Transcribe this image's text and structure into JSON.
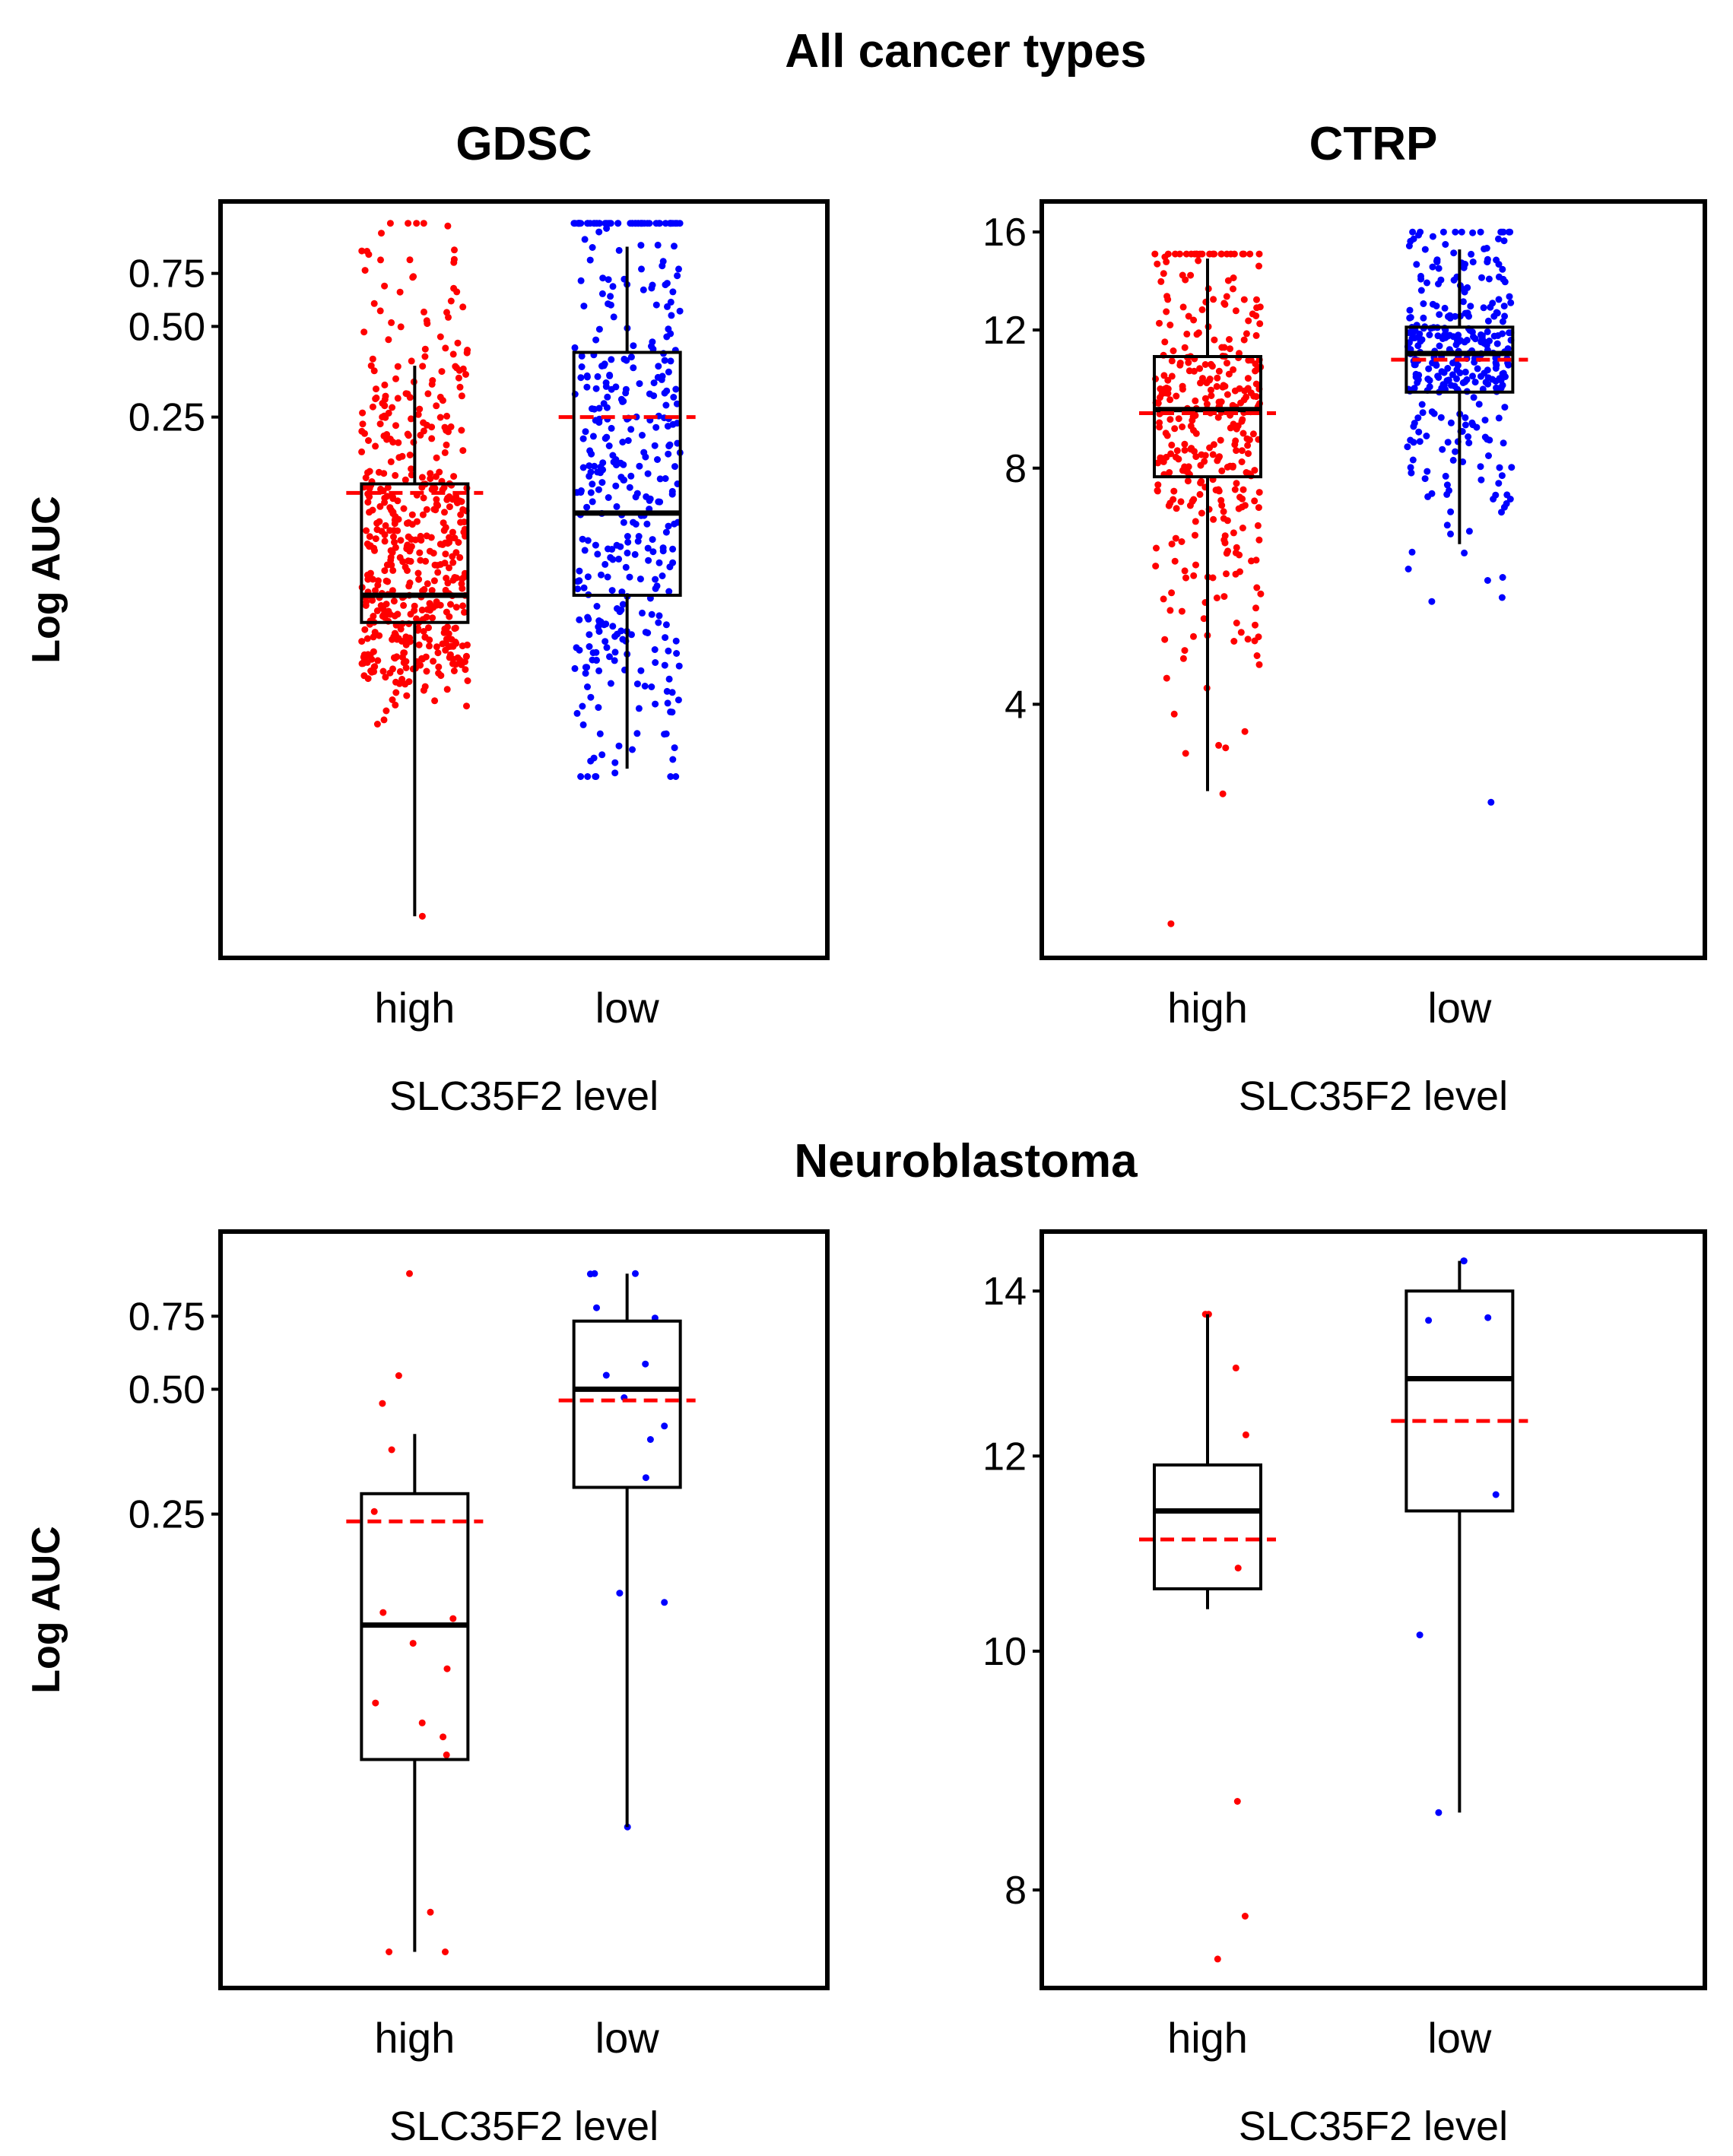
{
  "sections": [
    {
      "title": "All cancer types"
    },
    {
      "title": "Neuroblastoma"
    }
  ],
  "colors": {
    "high": "#ff0000",
    "low": "#0000ff",
    "mean": "#ff0000",
    "box": "#000000"
  },
  "chart_data": [
    {
      "type": "box",
      "section": 0,
      "title": "GDSC",
      "xlabel": "SLC35F2 level",
      "ylabel": "Log AUC",
      "scale": "log",
      "ylim": [
        0.004,
        1.3
      ],
      "yticks": [
        {
          "v": 0.25,
          "label": "0.25"
        },
        {
          "v": 0.5,
          "label": "0.50"
        },
        {
          "v": 0.75,
          "label": "0.75"
        }
      ],
      "categories": [
        "high",
        "low"
      ],
      "boxes": [
        {
          "category": "high",
          "q1": 0.052,
          "median": 0.064,
          "q3": 0.15,
          "whisker_low": 0.0055,
          "whisker_high": 0.37,
          "mean": 0.14,
          "n_points": 520,
          "point_min": 0.0055,
          "point_max": 1.1
        },
        {
          "category": "low",
          "q1": 0.064,
          "median": 0.12,
          "q3": 0.41,
          "whisker_low": 0.017,
          "whisker_high": 0.92,
          "mean": 0.25,
          "n_points": 400,
          "point_min": 0.016,
          "point_max": 1.1
        }
      ]
    },
    {
      "type": "box",
      "section": 0,
      "title": "CTRP",
      "xlabel": "SLC35F2 level",
      "ylabel": "",
      "scale": "log",
      "ylim": [
        1.9,
        17.5
      ],
      "yticks": [
        {
          "v": 4,
          "label": "4"
        },
        {
          "v": 8,
          "label": "8"
        },
        {
          "v": 12,
          "label": "12"
        },
        {
          "v": 16,
          "label": "16"
        }
      ],
      "categories": [
        "high",
        "low"
      ],
      "boxes": [
        {
          "category": "high",
          "q1": 7.8,
          "median": 9.5,
          "q3": 11.1,
          "whisker_low": 3.1,
          "whisker_high": 14.8,
          "mean": 9.4,
          "n_points": 360,
          "point_min": 2.1,
          "point_max": 15.0
        },
        {
          "category": "low",
          "q1": 10.0,
          "median": 11.2,
          "q3": 12.1,
          "whisker_low": 6.4,
          "whisker_high": 15.2,
          "mean": 11.0,
          "n_points": 330,
          "point_min": 3.0,
          "point_max": 16.0
        }
      ]
    },
    {
      "type": "box",
      "section": 1,
      "title": "",
      "xlabel": "SLC35F2 level",
      "ylabel": "Log AUC",
      "scale": "log",
      "ylim": [
        0.018,
        1.2
      ],
      "yticks": [
        {
          "v": 0.25,
          "label": "0.25"
        },
        {
          "v": 0.5,
          "label": "0.50"
        },
        {
          "v": 0.75,
          "label": "0.75"
        }
      ],
      "categories": [
        "high",
        "low"
      ],
      "boxes": [
        {
          "category": "high",
          "q1": 0.064,
          "median": 0.135,
          "q3": 0.28,
          "whisker_low": 0.022,
          "whisker_high": 0.39,
          "mean": 0.24,
          "n_points": 16,
          "point_min": 0.022,
          "point_max": 0.95
        },
        {
          "category": "low",
          "q1": 0.29,
          "median": 0.5,
          "q3": 0.73,
          "whisker_low": 0.044,
          "whisker_high": 0.95,
          "mean": 0.47,
          "n_points": 14,
          "point_min": 0.044,
          "point_max": 0.95
        }
      ]
    },
    {
      "type": "box",
      "section": 1,
      "title": "",
      "xlabel": "SLC35F2 level",
      "ylabel": "",
      "scale": "log",
      "ylim": [
        7.3,
        14.8
      ],
      "yticks": [
        {
          "v": 8,
          "label": "8"
        },
        {
          "v": 10,
          "label": "10"
        },
        {
          "v": 12,
          "label": "12"
        },
        {
          "v": 14,
          "label": "14"
        }
      ],
      "categories": [
        "high",
        "low"
      ],
      "boxes": [
        {
          "category": "high",
          "q1": 10.6,
          "median": 11.4,
          "q3": 11.9,
          "whisker_low": 10.4,
          "whisker_high": 13.7,
          "mean": 11.1,
          "n_points": 8,
          "point_min": 7.5,
          "point_max": 13.7
        },
        {
          "category": "low",
          "q1": 11.4,
          "median": 12.9,
          "q3": 14.0,
          "whisker_low": 8.6,
          "whisker_high": 14.4,
          "mean": 12.4,
          "n_points": 8,
          "point_min": 8.6,
          "point_max": 14.4
        }
      ]
    }
  ]
}
